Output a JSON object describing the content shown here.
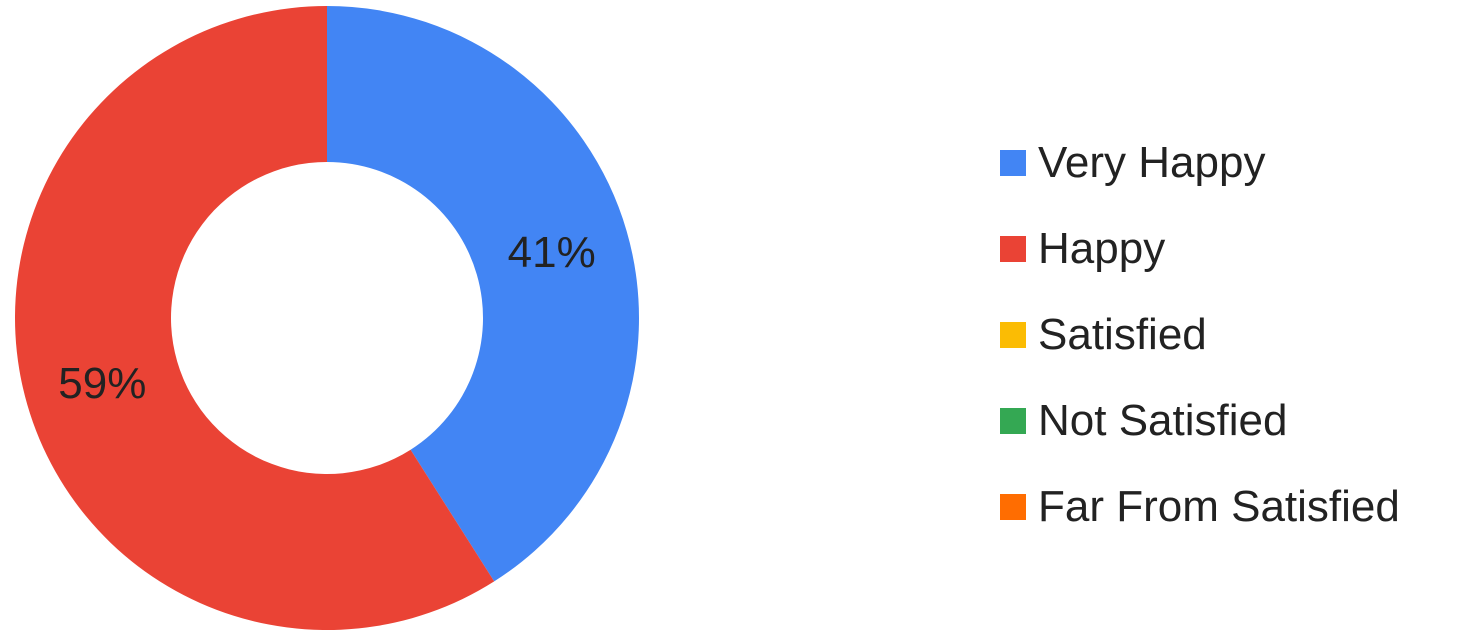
{
  "chart_data": {
    "type": "pie",
    "donut": true,
    "categories": [
      "Very Happy",
      "Happy",
      "Satisfied",
      "Not Satisfied",
      "Far From Satisfied"
    ],
    "values": [
      41,
      59,
      0,
      0,
      0
    ],
    "value_labels": [
      "41%",
      "59%",
      "",
      "",
      ""
    ],
    "colors": [
      "#4285f4",
      "#ea4335",
      "#fbbc04",
      "#34a853",
      "#ff6d01"
    ],
    "legend_position": "right",
    "title": ""
  }
}
